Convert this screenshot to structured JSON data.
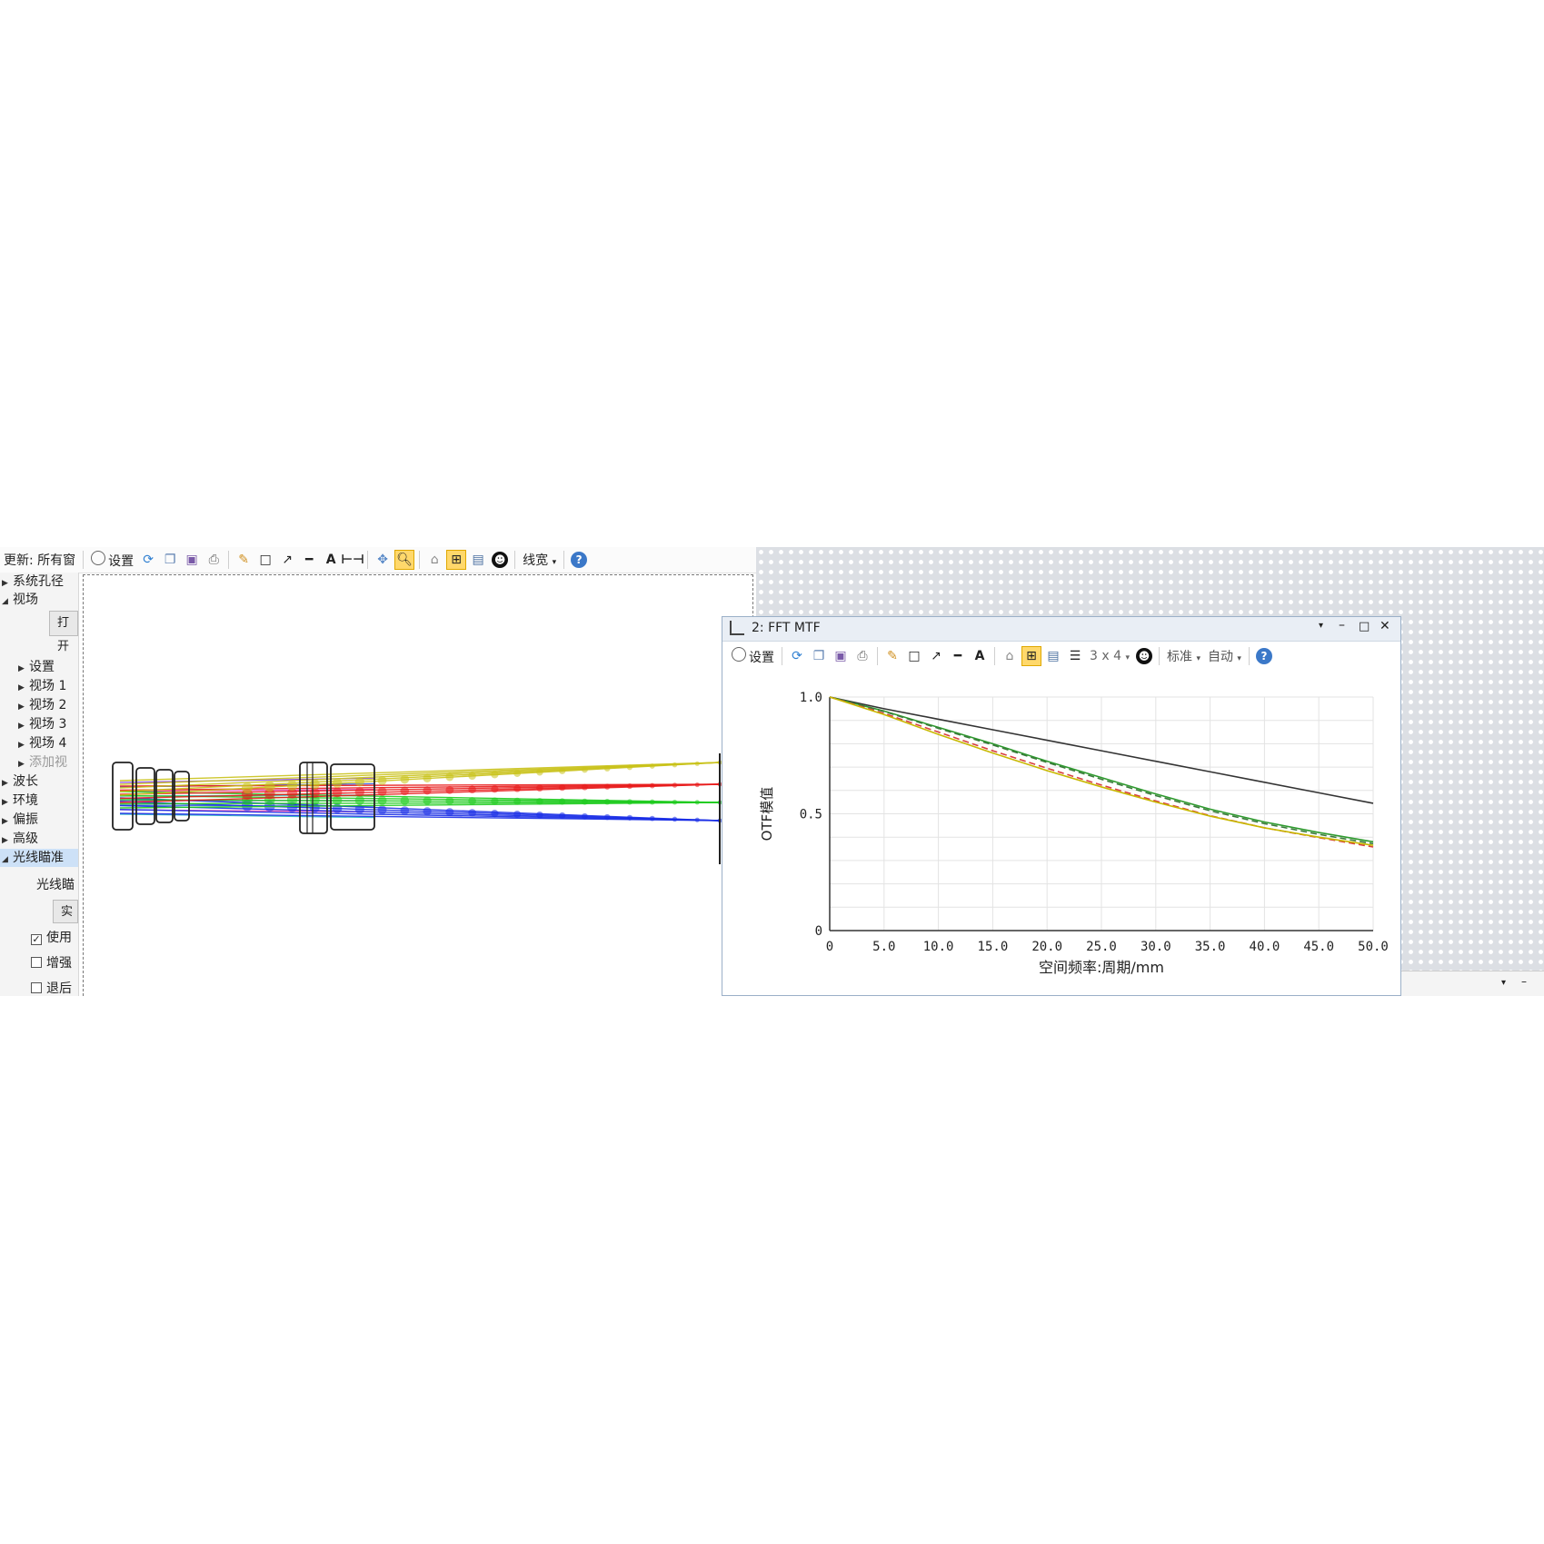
{
  "toolbar": {
    "update_label": "更新: 所有窗",
    "settings_label": "设置",
    "linewidth_label": "线宽"
  },
  "tree": {
    "system_aperture": "系统孔径",
    "field": "视场",
    "open_button": "打开",
    "settings": "设置",
    "field1": "视场 1",
    "field2": "视场 2",
    "field3": "视场 3",
    "field4": "视场 4",
    "add_field": "添加视",
    "wavelength": "波长",
    "environment": "环境",
    "polarization": "偏振",
    "advanced": "高级",
    "ray_aiming": "光线瞄准",
    "ray_aiming_sub": "光线瞄",
    "real_button": "实",
    "use_check": "使用",
    "enhance_check": "增强",
    "retreat_check": "退后"
  },
  "mtf_window": {
    "title": "2: FFT MTF",
    "settings_label": "设置",
    "grid_label": "3 x 4",
    "standard_label": "标准",
    "auto_label": "自动"
  },
  "colors": {
    "ray_yellow": "#c9c21a",
    "ray_red": "#e81c1c",
    "ray_green": "#1ecb1e",
    "ray_blue": "#1a2ee6",
    "accent_active": "#ffd86b"
  },
  "chart_data": {
    "type": "line",
    "title": "",
    "xlabel": "空间频率:周期/mm",
    "ylabel": "OTF模值",
    "xlim": [
      0,
      50
    ],
    "ylim": [
      0,
      1
    ],
    "xticks": [
      "0",
      "5.0",
      "10.0",
      "15.0",
      "20.0",
      "25.0",
      "30.0",
      "35.0",
      "40.0",
      "45.0",
      "50.0"
    ],
    "yticks": [
      "0",
      "0.5",
      "1.0"
    ],
    "grid": true,
    "x": [
      0,
      5,
      10,
      15,
      20,
      25,
      30,
      35,
      40,
      45,
      50
    ],
    "series": [
      {
        "color": "#333333",
        "dashed": false,
        "values": [
          1.0,
          0.95,
          0.905,
          0.86,
          0.815,
          0.77,
          0.725,
          0.68,
          0.635,
          0.59,
          0.545
        ]
      },
      {
        "color": "#2e9a2e",
        "dashed": false,
        "values": [
          1.0,
          0.94,
          0.87,
          0.8,
          0.725,
          0.655,
          0.585,
          0.52,
          0.465,
          0.42,
          0.38
        ]
      },
      {
        "color": "#3a7a3a",
        "dashed": true,
        "values": [
          1.0,
          0.938,
          0.866,
          0.795,
          0.72,
          0.648,
          0.578,
          0.513,
          0.458,
          0.412,
          0.372
        ]
      },
      {
        "color": "#d84040",
        "dashed": true,
        "values": [
          1.0,
          0.93,
          0.85,
          0.77,
          0.695,
          0.623,
          0.555,
          0.492,
          0.44,
          0.398,
          0.358
        ]
      },
      {
        "color": "#c8b800",
        "dashed": false,
        "values": [
          1.0,
          0.925,
          0.84,
          0.76,
          0.685,
          0.615,
          0.55,
          0.49,
          0.44,
          0.4,
          0.365
        ]
      }
    ]
  }
}
